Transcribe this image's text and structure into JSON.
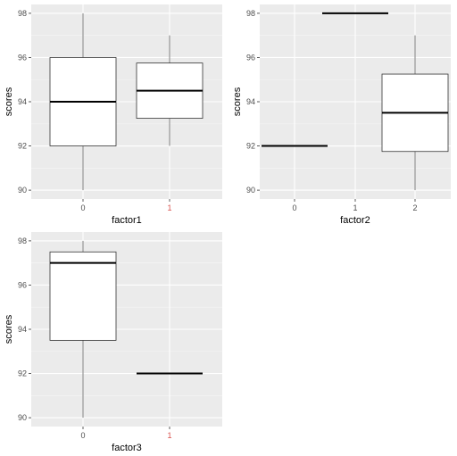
{
  "chart_data": [
    {
      "type": "boxplot",
      "xlabel": "factor1",
      "ylabel": "scores",
      "categories": [
        "0",
        "1"
      ],
      "tick_colors": [
        "#4d4d4d",
        "#d9534f"
      ],
      "ylim": [
        89.6,
        98.4
      ],
      "yticks": [
        90,
        92,
        94,
        96,
        98
      ],
      "grid": true,
      "boxes": [
        {
          "category": "0",
          "min": 90,
          "q1": 92,
          "median": 94,
          "q3": 96,
          "max": 98
        },
        {
          "category": "1",
          "min": 92,
          "q1": 93.25,
          "median": 94.5,
          "q3": 95.75,
          "max": 97
        }
      ]
    },
    {
      "type": "boxplot",
      "xlabel": "factor2",
      "ylabel": "scores",
      "categories": [
        "0",
        "1",
        "2"
      ],
      "tick_colors": [
        "#4d4d4d",
        "#4d4d4d",
        "#4d4d4d"
      ],
      "ylim": [
        89.6,
        98.4
      ],
      "yticks": [
        90,
        92,
        94,
        96,
        98
      ],
      "grid": true,
      "boxes": [
        {
          "category": "0",
          "min": 92,
          "q1": 92,
          "median": 92,
          "q3": 92,
          "max": 92
        },
        {
          "category": "1",
          "min": 98,
          "q1": 98,
          "median": 98,
          "q3": 98,
          "max": 98
        },
        {
          "category": "2",
          "min": 90,
          "q1": 91.75,
          "median": 93.5,
          "q3": 95.25,
          "max": 97
        }
      ]
    },
    {
      "type": "boxplot",
      "xlabel": "factor3",
      "ylabel": "scores",
      "categories": [
        "0",
        "1"
      ],
      "tick_colors": [
        "#4d4d4d",
        "#d9534f"
      ],
      "ylim": [
        89.6,
        98.4
      ],
      "yticks": [
        90,
        92,
        94,
        96,
        98
      ],
      "grid": true,
      "boxes": [
        {
          "category": "0",
          "min": 90,
          "q1": 93.5,
          "median": 97,
          "q3": 97.5,
          "max": 98
        },
        {
          "category": "1",
          "min": 92,
          "q1": 92,
          "median": 92,
          "q3": 92,
          "max": 92
        }
      ]
    }
  ],
  "colors": {
    "panel_background": "#ebebeb",
    "grid_major": "#ffffff",
    "grid_minor": "#f5f5f5",
    "box_fill": "#ffffff",
    "box_stroke": "#333333",
    "whisker": "#4d4d4d",
    "median": "#000000"
  }
}
